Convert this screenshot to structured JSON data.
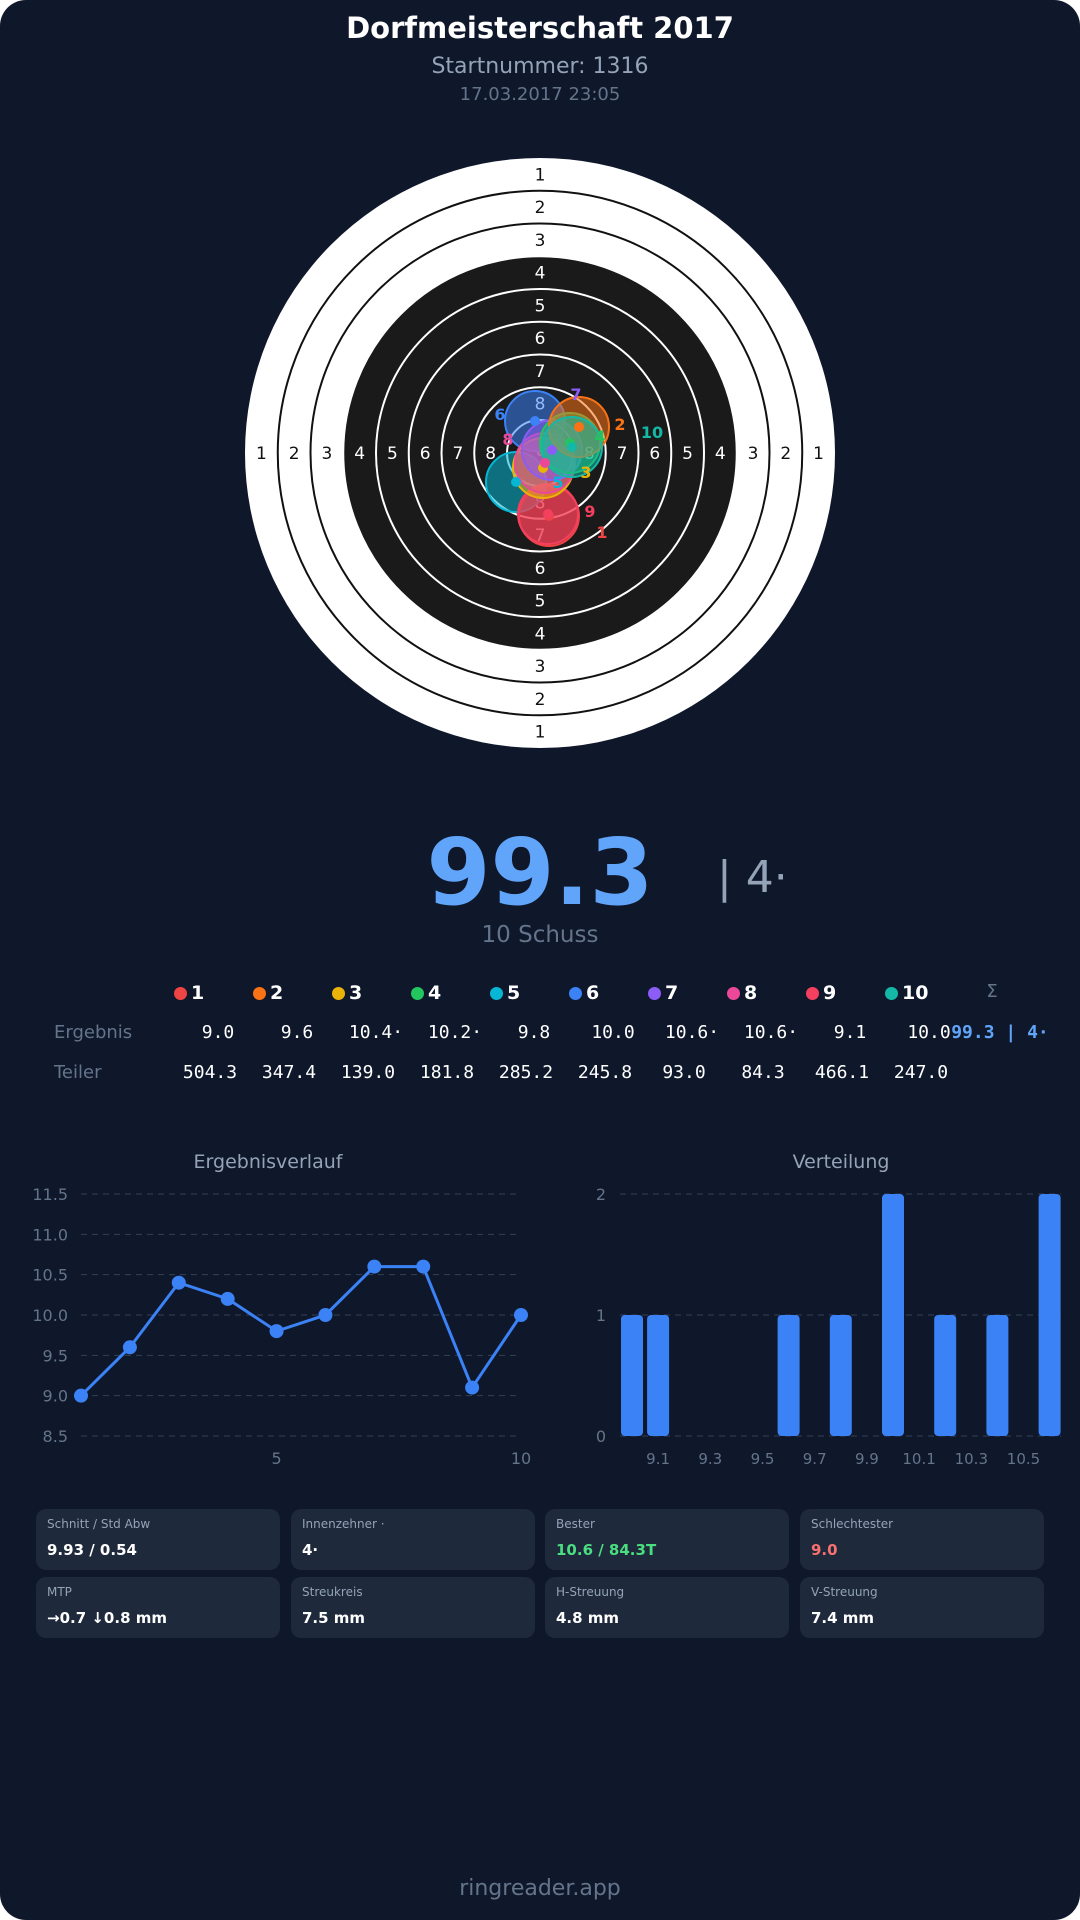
{
  "header": {
    "title": "Dorfmeisterschaft 2017",
    "start_number": "Startnummer: 1316",
    "datetime": "17.03.2017 23:05"
  },
  "target": {
    "ring_labels": [
      "1",
      "2",
      "3",
      "4",
      "5",
      "6",
      "7",
      "8"
    ],
    "shots": [
      {
        "n": "1",
        "color": "#ef4444"
      },
      {
        "n": "2",
        "color": "#f97316"
      },
      {
        "n": "3",
        "color": "#eab308"
      },
      {
        "n": "4",
        "color": "#22c55e"
      },
      {
        "n": "5",
        "color": "#06b6d4"
      },
      {
        "n": "6",
        "color": "#3b82f6"
      },
      {
        "n": "7",
        "color": "#8b5cf6"
      },
      {
        "n": "8",
        "color": "#ec4899"
      },
      {
        "n": "9",
        "color": "#f43f5e"
      },
      {
        "n": "10",
        "color": "#14b8a6"
      }
    ]
  },
  "summary": {
    "total": "99.3",
    "inner_tens": "| 4·",
    "shot_count": "10 Schuss"
  },
  "table": {
    "sum_header": "Σ",
    "result_label": "Ergebnis",
    "divider_label": "Teiler",
    "results": [
      "9.0",
      "9.6",
      "10.4·",
      "10.2·",
      "9.8",
      "10.0",
      "10.6·",
      "10.6·",
      "9.1",
      "10.0"
    ],
    "result_sum": "99.3 | 4·",
    "dividers": [
      "504.3",
      "347.4",
      "139.0",
      "181.8",
      "285.2",
      "245.8",
      "93.0",
      "84.3",
      "466.1",
      "247.0"
    ]
  },
  "chart_data": [
    {
      "type": "line",
      "title": "Ergebnisverlauf",
      "x": [
        1,
        2,
        3,
        4,
        5,
        6,
        7,
        8,
        9,
        10
      ],
      "values": [
        9.0,
        9.6,
        10.4,
        10.2,
        9.8,
        10.0,
        10.6,
        10.6,
        9.1,
        10.0
      ],
      "ylim": [
        8.5,
        11.5
      ],
      "yticks": [
        "8.5",
        "9.0",
        "9.5",
        "10.0",
        "10.5",
        "11.0",
        "11.5"
      ],
      "xticks": [
        "5",
        "10"
      ],
      "grid": true,
      "color": "#3b82f6"
    },
    {
      "type": "bar",
      "title": "Verteilung",
      "categories": [
        "9.0",
        "9.1",
        "9.6",
        "9.8",
        "10.0",
        "10.2",
        "10.4",
        "10.6"
      ],
      "values": [
        1,
        1,
        1,
        1,
        2,
        1,
        1,
        2
      ],
      "ylim": [
        0,
        2
      ],
      "yticks": [
        "0",
        "1",
        "2"
      ],
      "xticks": [
        "9.1",
        "9.3",
        "9.5",
        "9.7",
        "9.9",
        "10.1",
        "10.3",
        "10.5"
      ],
      "grid": true,
      "color": "#3b82f6"
    }
  ],
  "stats": [
    {
      "label": "Schnitt / Std Abw",
      "value": "9.93 / 0.54",
      "color": "#ffffff"
    },
    {
      "label": "Innenzehner ·",
      "value": "4·",
      "color": "#ffffff"
    },
    {
      "label": "Bester",
      "value": "10.6 / 84.3T",
      "color": "#4ade80"
    },
    {
      "label": "Schlechtester",
      "value": "9.0",
      "color": "#f87171"
    },
    {
      "label": "MTP",
      "value": "→0.7 ↓0.8 mm",
      "color": "#ffffff"
    },
    {
      "label": "Streukreis",
      "value": "7.5 mm",
      "color": "#ffffff"
    },
    {
      "label": "H-Streuung",
      "value": "4.8 mm",
      "color": "#ffffff"
    },
    {
      "label": "V-Streuung",
      "value": "7.4 mm",
      "color": "#ffffff"
    }
  ],
  "footer": "ringreader.app"
}
